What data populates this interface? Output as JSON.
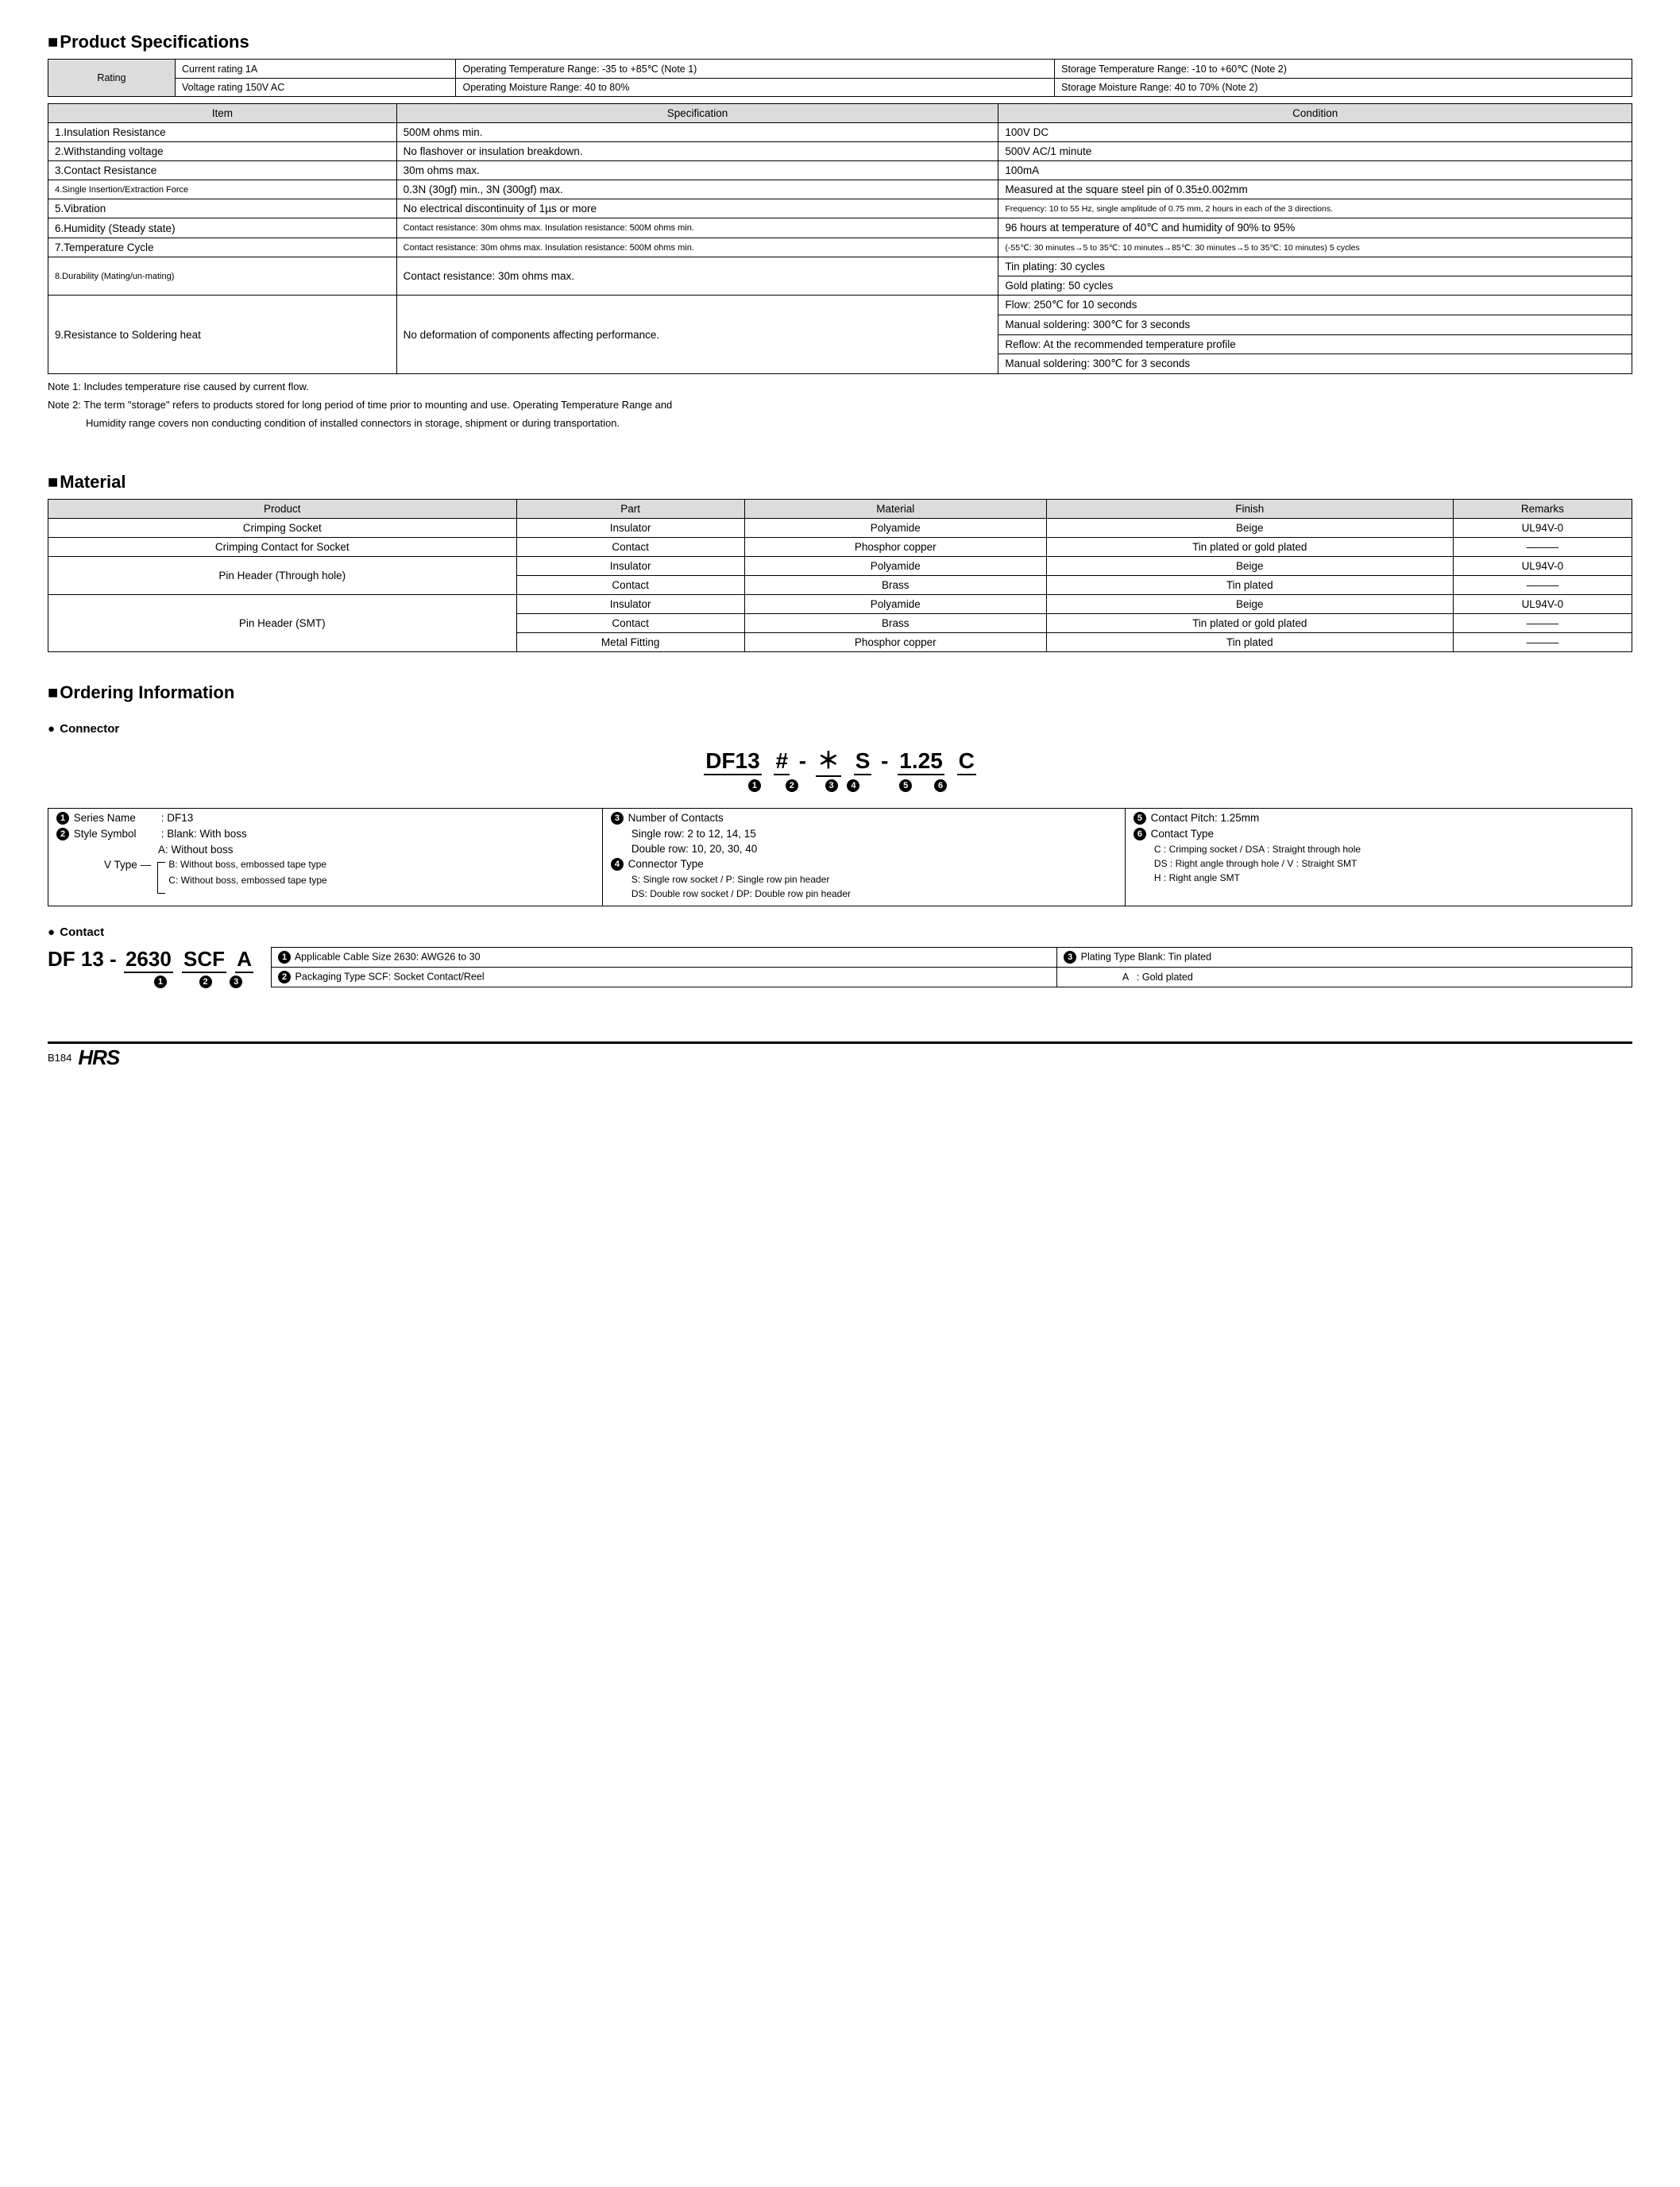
{
  "spec": {
    "title": "Product Specifications",
    "rating_label": "Rating",
    "rating_rows": [
      [
        "Current rating  1A",
        "Operating Temperature Range: -35 to +85℃ (Note 1)",
        "Storage Temperature Range: -10 to +60℃ (Note 2)"
      ],
      [
        "Voltage rating  150V AC",
        "Operating Moisture Range: 40 to 80%",
        "Storage Moisture Range: 40 to 70%      (Note 2)"
      ]
    ],
    "headers": [
      "Item",
      "Specification",
      "Condition"
    ],
    "rows": [
      {
        "item": "1.Insulation Resistance",
        "spec": "500M ohms min.",
        "cond": [
          "100V DC"
        ]
      },
      {
        "item": "2.Withstanding voltage",
        "spec": "No flashover or insulation breakdown.",
        "cond": [
          "500V AC/1 minute"
        ]
      },
      {
        "item": "3.Contact Resistance",
        "spec": "30m ohms max.",
        "cond": [
          "100mA"
        ]
      },
      {
        "item": "4.Single Insertion/Extraction Force",
        "spec": "0.3N (30gf) min., 3N (300gf) max.",
        "cond": [
          "Measured at the square steel pin of 0.35±0.002mm"
        ]
      },
      {
        "item": "5.Vibration",
        "spec": "No electrical discontinuity of 1µs or more",
        "cond": [
          "Frequency: 10 to 55 Hz, single amplitude of 0.75 mm, 2 hours in each of the 3 directions."
        ]
      },
      {
        "item": "6.Humidity (Steady state)",
        "spec": "Contact resistance: 30m ohms max. Insulation resistance: 500M ohms min.",
        "cond": [
          "96 hours at temperature of 40℃ and humidity of 90% to 95%"
        ]
      },
      {
        "item": "7.Temperature Cycle",
        "spec": "Contact resistance: 30m ohms max. Insulation resistance: 500M ohms min.",
        "cond": [
          "(-55℃: 30 minutes→5 to 35℃: 10 minutes→85℃: 30 minutes→5 to 35℃: 10 minutes) 5 cycles"
        ]
      },
      {
        "item": "8.Durability (Mating/un-mating)",
        "spec": "Contact resistance: 30m ohms max.",
        "cond": [
          "Tin plating: 30 cycles",
          "Gold plating: 50 cycles"
        ]
      },
      {
        "item": "9.Resistance to Soldering heat",
        "spec": "No deformation of components affecting performance.",
        "cond": [
          "Flow: 250℃ for 10 seconds",
          "Manual soldering: 300℃ for 3 seconds",
          "Reflow: At the recommended temperature profile",
          "Manual soldering: 300℃ for 3 seconds"
        ]
      }
    ],
    "note1": "Note 1: Includes temperature rise caused by current flow.",
    "note2a": "Note 2: The term \"storage\" refers to products stored for long period of time prior to mounting and use. Operating Temperature Range and",
    "note2b": "Humidity range covers non conducting condition of installed connectors in storage, shipment or during transportation."
  },
  "material": {
    "title": "Material",
    "headers": [
      "Product",
      "Part",
      "Material",
      "Finish",
      "Remarks"
    ],
    "rows": [
      {
        "product": "Crimping Socket",
        "rowspan": 1,
        "cells": [
          [
            "Insulator",
            "Polyamide",
            "Beige",
            "UL94V-0"
          ]
        ]
      },
      {
        "product": "Crimping Contact for Socket",
        "rowspan": 1,
        "cells": [
          [
            "Contact",
            "Phosphor copper",
            "Tin plated or gold plated",
            "———"
          ]
        ]
      },
      {
        "product": "Pin Header (Through hole)",
        "rowspan": 2,
        "cells": [
          [
            "Insulator",
            "Polyamide",
            "Beige",
            "UL94V-0"
          ],
          [
            "Contact",
            "Brass",
            "Tin plated",
            "———"
          ]
        ]
      },
      {
        "product": "Pin Header (SMT)",
        "rowspan": 3,
        "cells": [
          [
            "Insulator",
            "Polyamide",
            "Beige",
            "UL94V-0"
          ],
          [
            "Contact",
            "Brass",
            "Tin plated or gold plated",
            "———"
          ],
          [
            "Metal Fitting",
            "Phosphor copper",
            "Tin plated",
            "———"
          ]
        ]
      }
    ]
  },
  "ordering": {
    "title": "Ordering Information",
    "connector_sub": "Connector",
    "pn_segments": [
      "DF13",
      "#",
      "-",
      "＊",
      "S",
      "-",
      "1.25",
      "C"
    ],
    "pn_labels": [
      "1",
      "2",
      "",
      "3",
      "4",
      "",
      "5",
      "6"
    ],
    "col1": {
      "series_name_lbl": "Series Name",
      "series_name_val": ": DF13",
      "style_lbl": "Style Symbol",
      "style_val": ": Blank: With boss",
      "style_a": "A: Without boss",
      "vtype_lbl": "V Type",
      "vtype_b": "B: Without boss, embossed tape type",
      "vtype_c": "C: Without boss, embossed tape type"
    },
    "col2": {
      "num_lbl": "Number of Contacts",
      "num_a": "Single row: 2 to 12, 14, 15",
      "num_b": "Double row: 10, 20, 30, 40",
      "conn_lbl": "Connector Type",
      "conn_a": "S: Single row socket / P: Single row pin header",
      "conn_b": "DS: Double row socket / DP: Double row pin header"
    },
    "col3": {
      "pitch_lbl": "Contact Pitch: 1.25mm",
      "ctype_lbl": "Contact Type",
      "ctype_a": "C : Crimping socket / DSA : Straight through hole",
      "ctype_b": "DS : Right angle through hole / V : Straight SMT",
      "ctype_c": "H : Right angle SMT"
    },
    "contact_sub": "Contact",
    "contact_pn": [
      "DF 13",
      "-",
      "2630",
      "SCF",
      "A"
    ],
    "contact_labels": [
      "1",
      "2",
      "3"
    ],
    "contact_table": [
      [
        "Applicable Cable Size  2630: AWG26 to 30",
        "Plating Type    Blank: Tin plated"
      ],
      [
        "Packaging Type  SCF: Socket Contact/Reel",
        "                      A   : Gold plated"
      ]
    ],
    "contact_circ1": "1",
    "contact_circ2": "2",
    "contact_circ3": "3"
  },
  "footer": {
    "page": "B184",
    "logo": "HRS"
  }
}
